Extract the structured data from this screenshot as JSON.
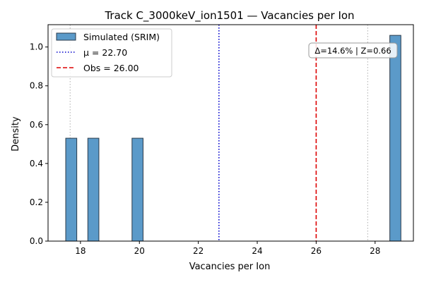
{
  "chart_data": {
    "type": "bar",
    "title": "Track C_3000keV_ion1501 — Vacancies per Ion",
    "xlabel": "Vacancies per Ion",
    "ylabel": "Density",
    "xlim": [
      16.9,
      29.3
    ],
    "ylim": [
      0,
      1.115
    ],
    "xticks": [
      18,
      20,
      22,
      24,
      26,
      28
    ],
    "xtick_labels": [
      "18",
      "20",
      "22",
      "24",
      "26",
      "28"
    ],
    "yticks": [
      0.0,
      0.2,
      0.4,
      0.6,
      0.8,
      1.0
    ],
    "ytick_labels": [
      "0.0",
      "0.2",
      "0.4",
      "0.6",
      "0.8",
      "1.0"
    ],
    "grid": false,
    "series": [
      {
        "name": "Simulated (SRIM)",
        "bin_width": 0.375,
        "bins": [
          {
            "x0": 17.5,
            "density": 0.53
          },
          {
            "x0": 18.25,
            "density": 0.53
          },
          {
            "x0": 19.75,
            "density": 0.53
          },
          {
            "x0": 28.5,
            "density": 1.06
          }
        ],
        "color": "#5b9ac9"
      }
    ],
    "reference_lines": [
      {
        "name": "μ = 22.70",
        "x": 22.7,
        "style": "dotted",
        "color": "#0000cc",
        "in_legend": true
      },
      {
        "name": "Obs = 26.00",
        "x": 26.0,
        "style": "dashed",
        "color": "#dd0000",
        "in_legend": true
      },
      {
        "x": 17.65,
        "style": "dotted",
        "color": "#bbbbbb",
        "in_legend": false
      },
      {
        "x": 27.75,
        "style": "dotted",
        "color": "#bbbbbb",
        "in_legend": false
      }
    ],
    "legend_position": "top-left",
    "annotation": {
      "text": "Δ=14.6% | Z=0.66",
      "position": "top-right"
    }
  }
}
